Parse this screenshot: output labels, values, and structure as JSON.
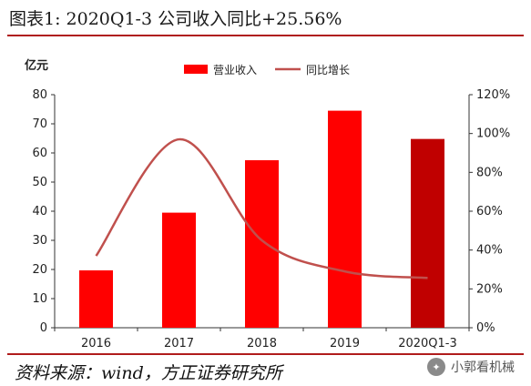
{
  "title": "图表1:  2020Q1-3 公司收入同比+25.56%",
  "source": "资料来源：wind，方正证券研究所",
  "watermark": {
    "text": "小郭看机械",
    "icon": "wechat-icon"
  },
  "colors": {
    "bar": "#ff0000",
    "bar_highlight": "#c00000",
    "line": "#c0504d",
    "rule": "#b01c1c"
  },
  "chart_data": {
    "type": "bar+line",
    "categories": [
      "2016",
      "2017",
      "2018",
      "2019",
      "2020Q1-3"
    ],
    "series": [
      {
        "name": "营业收入",
        "type": "bar",
        "axis": "left",
        "values": [
          19.7,
          39.5,
          57.5,
          74.5,
          64.8
        ]
      },
      {
        "name": "同比增长",
        "type": "line",
        "axis": "right",
        "values": [
          37,
          97,
          45,
          29,
          25.6
        ]
      }
    ],
    "ylabel_left": "亿元",
    "ylim_left": [
      0,
      80
    ],
    "yticks_left": [
      "0",
      "10",
      "20",
      "30",
      "40",
      "50",
      "60",
      "70",
      "80"
    ],
    "ylim_right": [
      0,
      120
    ],
    "yticks_right": [
      "0%",
      "20%",
      "40%",
      "60%",
      "80%",
      "100%",
      "120%"
    ],
    "legend_position": "top-center",
    "grid": false
  }
}
